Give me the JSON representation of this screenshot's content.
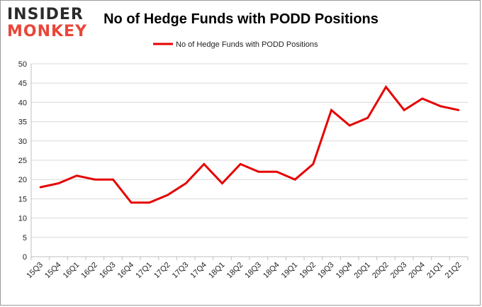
{
  "logo": {
    "line1": "INSIDER",
    "line2": "MONKEY"
  },
  "chart_data": {
    "type": "line",
    "title": "No of Hedge Funds with PODD Positions",
    "xlabel": "",
    "ylabel": "",
    "categories": [
      "15Q3",
      "15Q4",
      "16Q1",
      "16Q2",
      "16Q3",
      "16Q4",
      "17Q1",
      "17Q2",
      "17Q3",
      "17Q4",
      "18Q1",
      "18Q2",
      "18Q3",
      "18Q4",
      "19Q1",
      "19Q2",
      "19Q3",
      "19Q4",
      "20Q1",
      "20Q2",
      "20Q3",
      "20Q4",
      "21Q1",
      "21Q2"
    ],
    "series": [
      {
        "name": "No of Hedge Funds with PODD Positions",
        "color": "#e60000",
        "values": [
          18,
          19,
          21,
          20,
          20,
          14,
          14,
          16,
          19,
          24,
          19,
          24,
          22,
          22,
          20,
          24,
          38,
          34,
          36,
          44,
          38,
          41,
          39,
          38
        ]
      }
    ],
    "ylim": [
      0,
      50
    ],
    "yticks": [
      0,
      5,
      10,
      15,
      20,
      25,
      30,
      35,
      40,
      45,
      50
    ],
    "grid": true,
    "legend": "top-center"
  }
}
